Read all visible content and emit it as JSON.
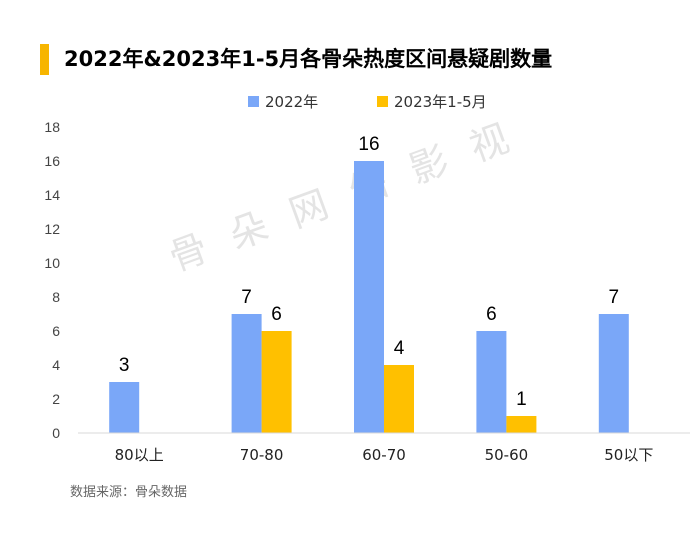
{
  "title": "2022年&2023年1-5月各骨朵热度区间悬疑剧数量",
  "source": "数据来源：骨朵数据",
  "watermark": "骨朵网络影视",
  "colors": {
    "accent": "#F7B500",
    "series_2022": "#7AA7F8",
    "series_2023": "#FFC000"
  },
  "chart_data": {
    "type": "bar",
    "title": "2022年&2023年1-5月各骨朵热度区间悬疑剧数量",
    "xlabel": "",
    "ylabel": "",
    "categories": [
      "80以上",
      "70-80",
      "60-70",
      "50-60",
      "50以下"
    ],
    "series": [
      {
        "name": "2022年",
        "values": [
          3,
          7,
          16,
          6,
          7
        ]
      },
      {
        "name": "2023年1-5月",
        "values": [
          null,
          6,
          4,
          1,
          null
        ]
      }
    ],
    "ylim": [
      0,
      18
    ],
    "yticks": [
      0,
      2,
      4,
      6,
      8,
      10,
      12,
      14,
      16,
      18
    ],
    "grid": false,
    "legend": "top"
  }
}
